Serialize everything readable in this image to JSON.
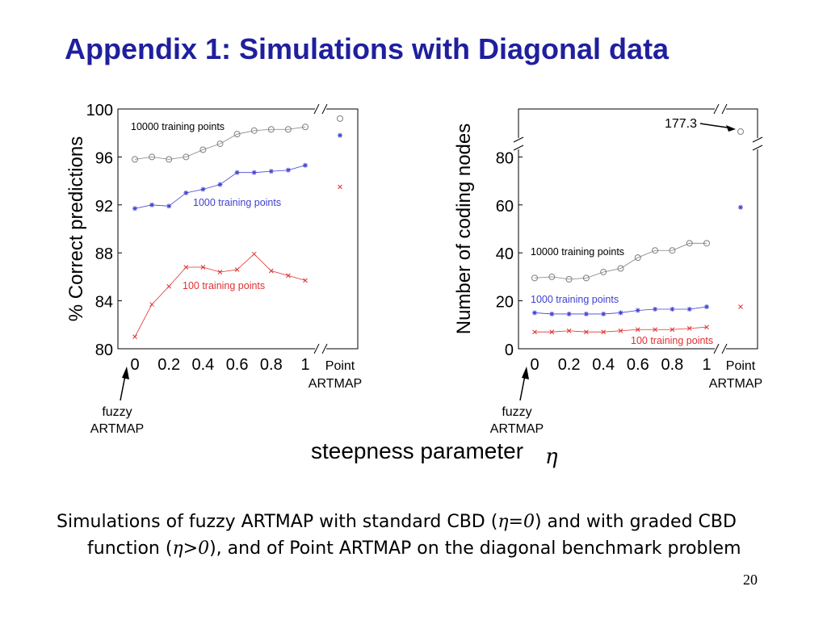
{
  "slide": {
    "title": "Appendix 1: Simulations with Diagonal data",
    "page_number": "20",
    "shared_xlabel": "steepness parameter",
    "shared_xlabel_symbol": "η",
    "caption": {
      "part1": "Simulations of fuzzy ARTMAP with standard CBD (",
      "eta0": "η=0",
      "part2": ") and with graded CBD function (",
      "eta_pos": "η>0",
      "part3": "), and of Point ARTMAP on the diagonal benchmark problem"
    }
  },
  "chart_data": [
    {
      "type": "line",
      "ylabel": "% Correct predictions",
      "xlabel": "",
      "x": [
        0,
        0.1,
        0.2,
        0.3,
        0.4,
        0.5,
        0.6,
        0.7,
        0.8,
        0.9,
        1.0
      ],
      "xticks": [
        "0",
        "0.2",
        "0.4",
        "0.6",
        "0.8",
        "1"
      ],
      "xtick_values": [
        0,
        0.2,
        0.4,
        0.6,
        0.8,
        1.0
      ],
      "extra_xtick": [
        "Point",
        "ARTMAP"
      ],
      "ylim": [
        80,
        100
      ],
      "yticks": [
        "80",
        "84",
        "88",
        "92",
        "96",
        "100"
      ],
      "ytick_values": [
        80,
        84,
        88,
        92,
        96,
        100
      ],
      "fuzzy_label": [
        "fuzzy",
        "ARTMAP"
      ],
      "series": [
        {
          "name": "10000 training points",
          "color": "#808080",
          "marker": "circle",
          "values": [
            95.8,
            96.0,
            95.8,
            96.0,
            96.6,
            97.1,
            97.9,
            98.2,
            98.3,
            98.3,
            98.5
          ],
          "point_artmap": 99.2,
          "label_position": "top-left"
        },
        {
          "name": "1000 training points",
          "color": "#4040d0",
          "marker": "asterisk",
          "values": [
            91.7,
            92.0,
            91.9,
            93.0,
            93.3,
            93.7,
            94.7,
            94.7,
            94.8,
            94.9,
            95.3
          ],
          "point_artmap": 97.8,
          "label_position": "middle"
        },
        {
          "name": "100 training points",
          "color": "#e03030",
          "marker": "x",
          "values": [
            81.0,
            83.7,
            85.2,
            86.8,
            86.8,
            86.4,
            86.6,
            87.9,
            86.5,
            86.1,
            85.7
          ],
          "point_artmap": 93.5,
          "label_position": "bottom"
        }
      ]
    },
    {
      "type": "line",
      "ylabel": "Number of coding nodes",
      "xlabel": "",
      "x": [
        0,
        0.1,
        0.2,
        0.3,
        0.4,
        0.5,
        0.6,
        0.7,
        0.8,
        0.9,
        1.0
      ],
      "xticks": [
        "0",
        "0.2",
        "0.4",
        "0.6",
        "0.8",
        "1"
      ],
      "xtick_values": [
        0,
        0.2,
        0.4,
        0.6,
        0.8,
        1.0
      ],
      "extra_xtick": [
        "Point",
        "ARTMAP"
      ],
      "ylim": [
        0,
        100
      ],
      "yticks": [
        "0",
        "20",
        "40",
        "60",
        "80"
      ],
      "ytick_values": [
        0,
        20,
        40,
        60,
        80
      ],
      "fuzzy_label": [
        "fuzzy",
        "ARTMAP"
      ],
      "annotation": "177.3",
      "series": [
        {
          "name": "10000 training points",
          "color": "#808080",
          "marker": "circle",
          "values": [
            29.5,
            30.0,
            29.0,
            29.5,
            32.0,
            33.5,
            38.0,
            41.0,
            41.0,
            44.0,
            44.0
          ],
          "point_artmap": 177.3,
          "label_position": "middle"
        },
        {
          "name": "1000 training points",
          "color": "#4040d0",
          "marker": "asterisk",
          "values": [
            15.0,
            14.5,
            14.5,
            14.5,
            14.5,
            15.0,
            16.0,
            16.5,
            16.5,
            16.5,
            17.5
          ],
          "point_artmap": 59.0,
          "label_position": "middle"
        },
        {
          "name": "100 training points",
          "color": "#e03030",
          "marker": "x",
          "values": [
            7.0,
            7.0,
            7.5,
            7.0,
            7.0,
            7.5,
            8.0,
            8.0,
            8.0,
            8.5,
            9.0
          ],
          "point_artmap": 17.5,
          "label_position": "bottom"
        }
      ]
    }
  ]
}
